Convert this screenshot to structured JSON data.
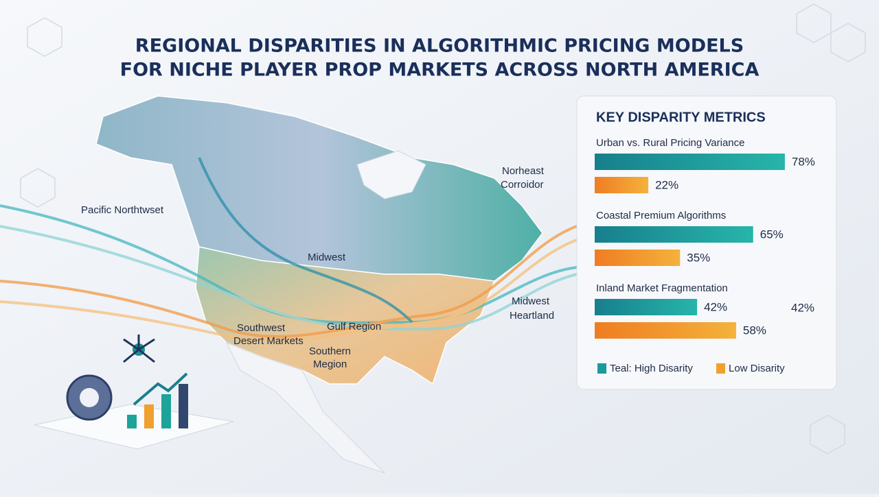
{
  "header": {
    "title_lines": [
      "REGIONAL DISPARITIES IN ALGORITHMIC PRICING MODELS",
      "FOR NICHE PLAYER PROP MARKETS ACROSS NORTH AMERICA"
    ]
  },
  "map_labels": [
    "Pacific Northtwset",
    "Norheast",
    "Corroidor",
    "Midwest",
    "Midwest",
    "Heartland",
    "Southwest",
    "Desert Markets",
    "Gulf Region",
    "Southern",
    "Megion"
  ],
  "chart_data": {
    "type": "bar",
    "orientation": "horizontal",
    "title": "KEY DISPARITY METRICS",
    "categories": [
      "Urban vs. Rural Pricing Variance",
      "Coastal Premium Algorithms",
      "Inland Market Fragmentation"
    ],
    "series": [
      {
        "name": "Teal: High Disarity",
        "color": "#1a9a9f",
        "values": [
          78,
          65,
          42
        ],
        "value_labels": [
          "78%",
          "65%",
          "42%"
        ]
      },
      {
        "name": "Low Disarity",
        "color": "#f0a030",
        "values": [
          22,
          35,
          58
        ],
        "value_labels": [
          "22%",
          "35%",
          "58%"
        ]
      }
    ],
    "xlim": [
      0,
      100
    ]
  }
}
